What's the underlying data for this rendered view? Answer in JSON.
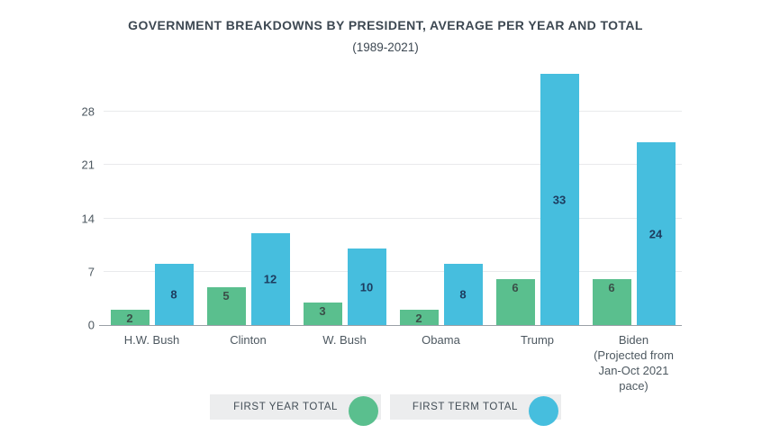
{
  "header": {
    "title": "GOVERNMENT BREAKDOWNS BY PRESIDENT, AVERAGE PER YEAR AND TOTAL",
    "subtitle": "(1989-2021)"
  },
  "colors": {
    "first_year": "#5abf8e",
    "first_term": "#46bede",
    "value_label_on_green": "#3a4f48",
    "value_label_on_blue": "#1d3b5e",
    "gridline": "#e9eaec",
    "axis_line": "#9aa0a7",
    "axis_text": "#4d5860",
    "title_text": "#3d4852",
    "legend_bg": "#ecedee",
    "legend_text": "#424d56"
  },
  "y_axis": {
    "ticks": [
      0,
      7,
      14,
      21,
      28
    ]
  },
  "legend": {
    "items": [
      {
        "label": "FIRST YEAR TOTAL",
        "color_key": "first_year"
      },
      {
        "label": "FIRST TERM TOTAL",
        "color_key": "first_term"
      }
    ]
  },
  "chart_data": {
    "type": "bar",
    "title": "GOVERNMENT BREAKDOWNS BY PRESIDENT, AVERAGE PER YEAR AND TOTAL",
    "subtitle": "(1989-2021)",
    "categories": [
      "H.W. Bush",
      "Clinton",
      "W. Bush",
      "Obama",
      "Trump",
      "Biden (Projected from Jan-Oct 2021 pace)"
    ],
    "category_label_lines": [
      [
        "H.W. Bush"
      ],
      [
        "Clinton"
      ],
      [
        "W. Bush"
      ],
      [
        "Obama"
      ],
      [
        "Trump"
      ],
      [
        "Biden",
        "(Projected from",
        "Jan-Oct 2021 pace)"
      ]
    ],
    "series": [
      {
        "name": "FIRST YEAR TOTAL",
        "color_key": "first_year",
        "values": [
          2,
          5,
          3,
          2,
          6,
          6
        ]
      },
      {
        "name": "FIRST TERM TOTAL",
        "color_key": "first_term",
        "values": [
          8,
          12,
          10,
          8,
          33,
          24
        ]
      }
    ],
    "ylim": [
      0,
      34
    ],
    "grid": true,
    "legend_position": "bottom",
    "value_labels": "inside-bars"
  }
}
